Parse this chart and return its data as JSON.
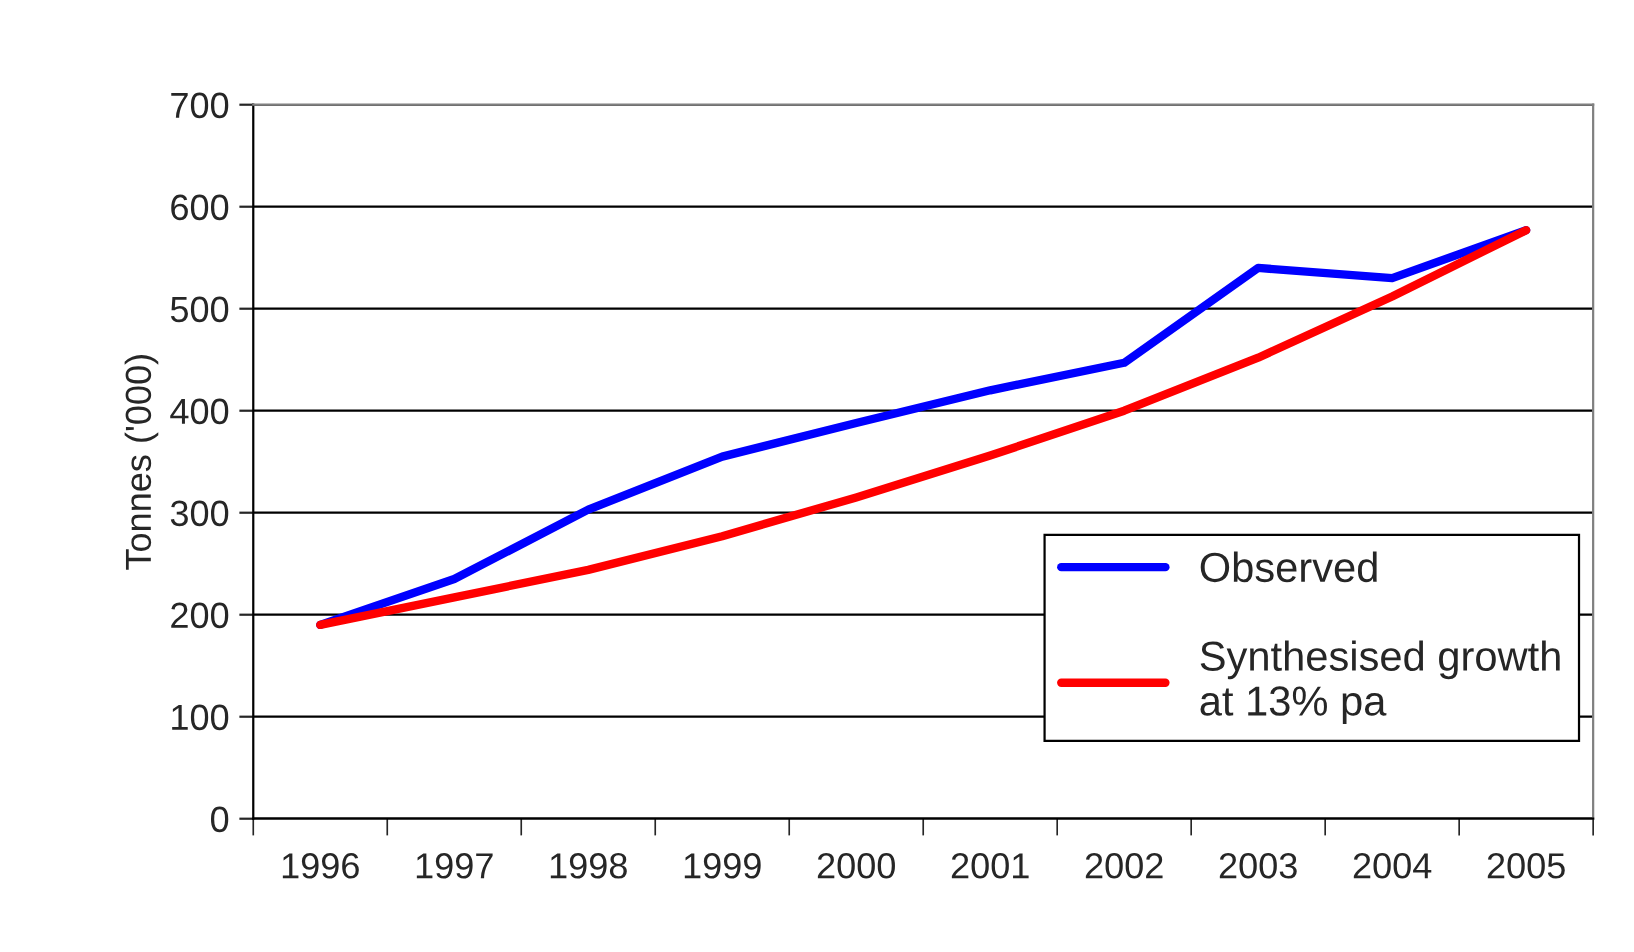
{
  "chart_data": {
    "type": "line",
    "ylabel": "Tonnes ('000)",
    "categories": [
      "1996",
      "1997",
      "1998",
      "1999",
      "2000",
      "2001",
      "2002",
      "2003",
      "2004",
      "2005"
    ],
    "series": [
      {
        "name": "Observed",
        "color": "#0000ff",
        "values": [
          190,
          235,
          303,
          355,
          388,
          420,
          447,
          540,
          530,
          577
        ]
      },
      {
        "name": "Synthesised growth\nat 13% pa",
        "color": "#ff0000",
        "values": [
          190,
          217,
          244,
          277,
          315,
          356,
          400,
          452,
          512,
          577
        ]
      }
    ],
    "ylim": [
      0,
      700
    ],
    "yticks": [
      0,
      100,
      200,
      300,
      400,
      500,
      600,
      700
    ],
    "grid": "y",
    "legend": "bottom right",
    "marker": "none",
    "line_style": "solid"
  }
}
